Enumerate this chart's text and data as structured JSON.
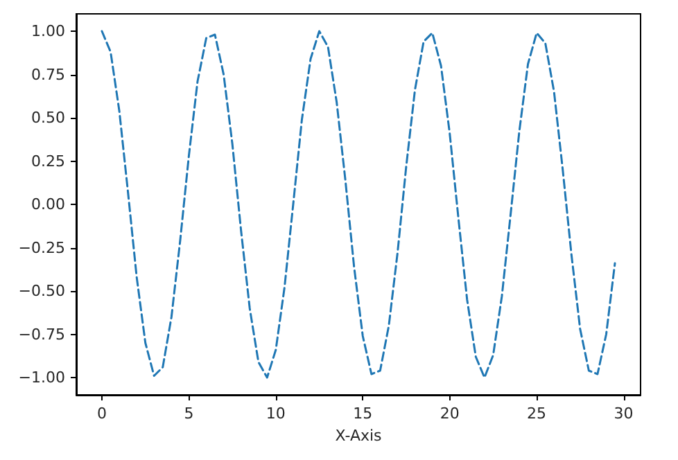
{
  "chart_data": {
    "type": "line",
    "xlabel": "X-Axis",
    "x": [
      0,
      0.5,
      1,
      1.5,
      2,
      2.5,
      3,
      3.5,
      4,
      4.5,
      5,
      5.5,
      6,
      6.5,
      7,
      7.5,
      8,
      8.5,
      9,
      9.5,
      10,
      10.5,
      11,
      11.5,
      12,
      12.5,
      13,
      13.5,
      14,
      14.5,
      15,
      15.5,
      16,
      16.5,
      17,
      17.5,
      18,
      18.5,
      19,
      19.5,
      20,
      20.5,
      21,
      21.5,
      22,
      22.5,
      23,
      23.5,
      24,
      24.5,
      25,
      25.5,
      26,
      26.5,
      27,
      27.5,
      28,
      28.5,
      29,
      29.5
    ],
    "series": [
      {
        "color": "#1f77b4",
        "values": [
          1.0,
          0.88,
          0.54,
          0.07,
          -0.42,
          -0.8,
          -0.99,
          -0.94,
          -0.65,
          -0.21,
          0.28,
          0.71,
          0.96,
          0.98,
          0.75,
          0.35,
          -0.15,
          -0.6,
          -0.91,
          -1.0,
          -0.84,
          -0.48,
          0.0,
          0.49,
          0.84,
          1.0,
          0.91,
          0.59,
          0.14,
          -0.36,
          -0.76,
          -0.98,
          -0.96,
          -0.7,
          -0.28,
          0.22,
          0.66,
          0.94,
          0.99,
          0.8,
          0.41,
          -0.08,
          -0.55,
          -0.88,
          -1.0,
          -0.87,
          -0.53,
          -0.06,
          0.42,
          0.81,
          0.99,
          0.93,
          0.65,
          0.2,
          -0.29,
          -0.72,
          -0.96,
          -0.98,
          -0.75,
          -0.34
        ]
      }
    ],
    "xlim": [
      -1.475,
      30.975
    ],
    "xticks": [
      0,
      5,
      10,
      15,
      20,
      25,
      30
    ],
    "ylim": [
      -1.1,
      1.1
    ],
    "yticks": [
      {
        "value": -1,
        "label": "−1.00"
      },
      {
        "value": -0.75,
        "label": "−0.75"
      },
      {
        "value": -0.5,
        "label": "−0.50"
      },
      {
        "value": -0.25,
        "label": "−0.25"
      },
      {
        "value": 0,
        "label": "0.00"
      },
      {
        "value": 0.25,
        "label": "0.25"
      },
      {
        "value": 0.5,
        "label": "0.50"
      },
      {
        "value": 0.75,
        "label": "0.75"
      },
      {
        "value": 1,
        "label": "1.00"
      }
    ],
    "marker": "none",
    "line_style": "dashed"
  }
}
